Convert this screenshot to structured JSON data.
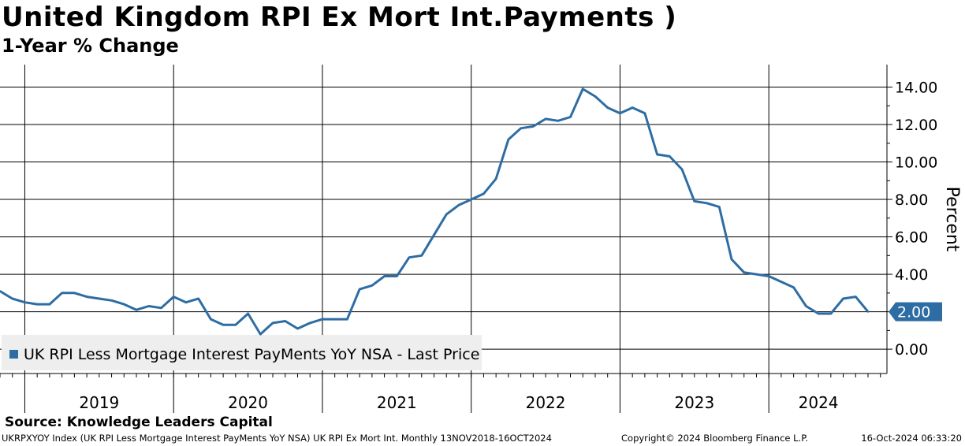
{
  "title": "United Kingdom RPI Ex Mort Int.Payments )",
  "subtitle": "1-Year % Change",
  "source": "Source: Knowledge Leaders Capital",
  "footer": {
    "left": "UKRPXYOY Index (UK RPI Less Mortgage Interest PayMents YoY NSA) UK RPI Ex Mort Int.  Monthly 13NOV2018-16OCT2024",
    "middle": "Copyright© 2024 Bloomberg Finance L.P.",
    "right": "16-Oct-2024 06:33:20"
  },
  "colors": {
    "series": "#2e6da4",
    "grid": "#000000",
    "legend_bg": "#eeeeee"
  },
  "chart_data": {
    "type": "line",
    "ylabel": "Percent",
    "ylim": [
      -1.3,
      15.2
    ],
    "yticks": [
      "0.00",
      "2.00",
      "4.00",
      "6.00",
      "8.00",
      "10.00",
      "12.00",
      "14.00"
    ],
    "ytick_values": [
      0,
      2,
      4,
      6,
      8,
      10,
      12,
      14
    ],
    "year_labels": [
      "2019",
      "2020",
      "2021",
      "2022",
      "2023",
      "2024"
    ],
    "grid": true,
    "legend_position": "bottom-left",
    "last_price_label": "2.00",
    "series": [
      {
        "name": "UK RPI Less Mortgage Interest PayMents YoY NSA - Last Price",
        "x": [
          "2018-11",
          "2018-12",
          "2019-01",
          "2019-02",
          "2019-03",
          "2019-04",
          "2019-05",
          "2019-06",
          "2019-07",
          "2019-08",
          "2019-09",
          "2019-10",
          "2019-11",
          "2019-12",
          "2020-01",
          "2020-02",
          "2020-03",
          "2020-04",
          "2020-05",
          "2020-06",
          "2020-07",
          "2020-08",
          "2020-09",
          "2020-10",
          "2020-11",
          "2020-12",
          "2021-01",
          "2021-02",
          "2021-03",
          "2021-04",
          "2021-05",
          "2021-06",
          "2021-07",
          "2021-08",
          "2021-09",
          "2021-10",
          "2021-11",
          "2021-12",
          "2022-01",
          "2022-02",
          "2022-03",
          "2022-04",
          "2022-05",
          "2022-06",
          "2022-07",
          "2022-08",
          "2022-09",
          "2022-10",
          "2022-11",
          "2022-12",
          "2023-01",
          "2023-02",
          "2023-03",
          "2023-04",
          "2023-05",
          "2023-06",
          "2023-07",
          "2023-08",
          "2023-09",
          "2023-10",
          "2023-11",
          "2023-12",
          "2024-01",
          "2024-02",
          "2024-03",
          "2024-04",
          "2024-05",
          "2024-06",
          "2024-07",
          "2024-08",
          "2024-09"
        ],
        "values": [
          3.1,
          2.7,
          2.5,
          2.4,
          2.4,
          3.0,
          3.0,
          2.8,
          2.7,
          2.6,
          2.4,
          2.1,
          2.3,
          2.2,
          2.8,
          2.5,
          2.7,
          1.6,
          1.3,
          1.3,
          1.9,
          0.8,
          1.4,
          1.5,
          1.1,
          1.4,
          1.6,
          1.6,
          1.6,
          3.2,
          3.4,
          3.9,
          3.9,
          4.9,
          5.0,
          6.1,
          7.2,
          7.7,
          8.0,
          8.3,
          9.1,
          11.2,
          11.8,
          11.9,
          12.3,
          12.2,
          12.4,
          13.9,
          13.5,
          12.9,
          12.6,
          12.9,
          12.6,
          10.4,
          10.3,
          9.6,
          7.9,
          7.8,
          7.6,
          4.8,
          4.1,
          4.0,
          3.9,
          3.6,
          3.3,
          2.3,
          1.9,
          1.9,
          2.7,
          2.8,
          2.0
        ]
      }
    ]
  }
}
